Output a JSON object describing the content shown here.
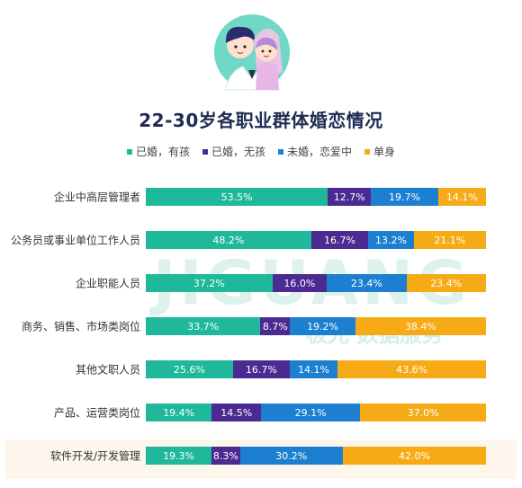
{
  "chart_data": {
    "type": "bar",
    "orientation": "horizontal",
    "stacked": true,
    "title": "22-30岁各职业群体婚恋情况",
    "legend_position": "top",
    "categories": [
      "企业中高层管理者",
      "公务员或事业单位工作人员",
      "企业职能人员",
      "商务、销售、市场类岗位",
      "其他文职人员",
      "产品、运营类岗位",
      "软件开发/开发管理"
    ],
    "series": [
      {
        "name": "已婚，有孩",
        "color": "#1fb89a",
        "values": [
          53.5,
          48.2,
          37.2,
          33.7,
          25.6,
          19.4,
          19.3
        ],
        "labels": [
          "53.5%",
          "48.2%",
          "37.2%",
          "33.7%",
          "25.6%",
          "19.4%",
          "19.3%"
        ]
      },
      {
        "name": "已婚，无孩",
        "color": "#4b2a91",
        "values": [
          12.7,
          16.7,
          16.0,
          8.7,
          16.7,
          14.5,
          8.3
        ],
        "labels": [
          "12.7%",
          "16.7%",
          "16.0%",
          "8.7%",
          "16.7%",
          "14.5%",
          "8.3%"
        ]
      },
      {
        "name": "未婚，恋爱中",
        "color": "#1c7fd0",
        "values": [
          19.7,
          13.2,
          23.4,
          19.2,
          14.1,
          29.1,
          30.2
        ],
        "labels": [
          "19.7%",
          "13.2%",
          "23.4%",
          "19.2%",
          "14.1%",
          "29.1%",
          "30.2%"
        ]
      },
      {
        "name": "单身",
        "color": "#f6ab16",
        "values": [
          14.1,
          21.1,
          23.4,
          38.4,
          43.6,
          37.0,
          42.0
        ],
        "labels": [
          "14.1%",
          "21.1%",
          "23.4%",
          "38.4%",
          "43.6%",
          "37.0%",
          "42.0%"
        ]
      }
    ],
    "highlight_category": "软件开发/开发管理",
    "grid": false
  },
  "watermark": {
    "line1": "JIGUANG",
    "line2": "极光 数据服务"
  },
  "avatar_icon": "couple-avatar-icon"
}
